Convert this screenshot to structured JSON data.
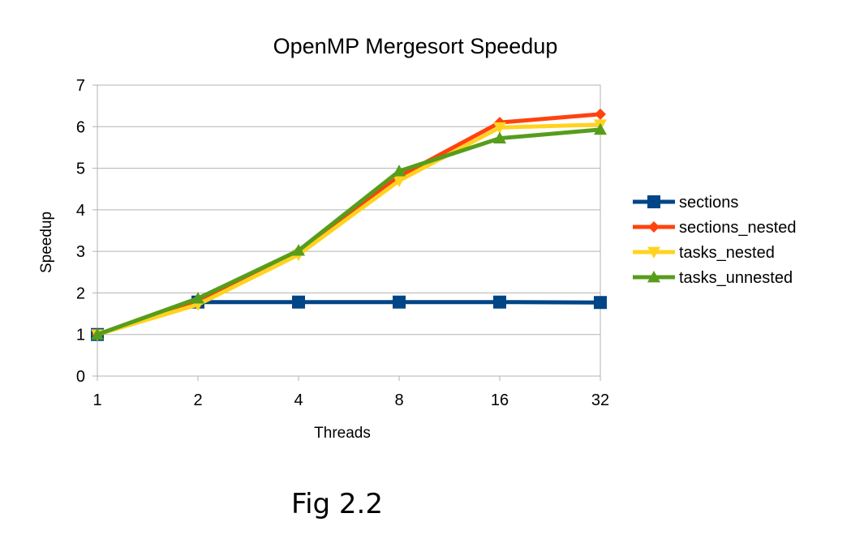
{
  "chart_data": {
    "type": "line",
    "title": "OpenMP Mergesort Speedup",
    "xlabel": "Threads",
    "ylabel": "Speedup",
    "categories": [
      "1",
      "2",
      "4",
      "8",
      "16",
      "32"
    ],
    "ylim": [
      0,
      7
    ],
    "yticks": [
      0,
      1,
      2,
      3,
      4,
      5,
      6,
      7
    ],
    "grid": "horizontal",
    "legend_position": "right",
    "series": [
      {
        "name": "sections",
        "values": [
          1.0,
          1.78,
          1.78,
          1.78,
          1.78,
          1.77
        ],
        "color": "#004586",
        "marker": "square"
      },
      {
        "name": "sections_nested",
        "values": [
          1.0,
          1.8,
          3.0,
          4.8,
          6.1,
          6.3
        ],
        "color": "#ff420e",
        "marker": "diamond"
      },
      {
        "name": "tasks_nested",
        "values": [
          1.0,
          1.72,
          2.92,
          4.7,
          5.98,
          6.05
        ],
        "color": "#ffd320",
        "marker": "triangle-down"
      },
      {
        "name": "tasks_unnested",
        "values": [
          1.0,
          1.87,
          3.02,
          4.93,
          5.72,
          5.93
        ],
        "color": "#579d1c",
        "marker": "triangle-up"
      }
    ]
  },
  "caption": "Fig 2.2"
}
